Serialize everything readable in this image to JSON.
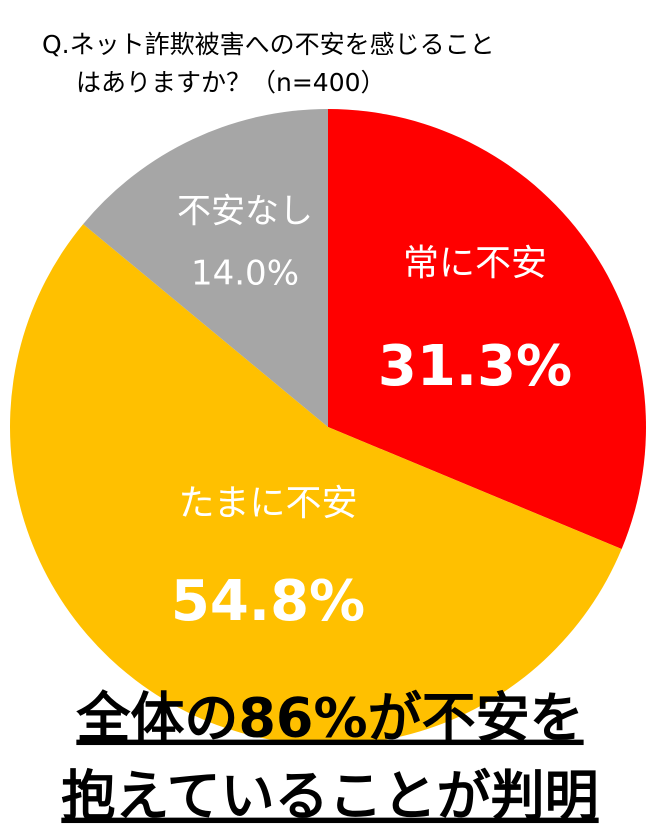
{
  "chart_data": {
    "type": "pie",
    "title": [
      "Q.ネット詐欺被害への不安を感じること",
      "はありますか？（n=400）"
    ],
    "categories": [
      "常に不安",
      "たまに不安",
      "不安なし"
    ],
    "values": [
      31.3,
      54.8,
      14.0
    ],
    "value_labels": [
      "31.3%",
      "54.8%",
      "14.0%"
    ],
    "colors": [
      "#ff0000",
      "#ffc000",
      "#a6a6a6"
    ],
    "annotations": [
      "全体の86%が不安を",
      "抱えていることが判明"
    ]
  }
}
